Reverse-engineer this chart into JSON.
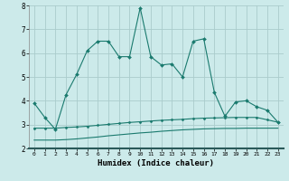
{
  "xlabel": "Humidex (Indice chaleur)",
  "background_color": "#cceaea",
  "grid_color": "#aacccc",
  "line_color": "#1a7a6e",
  "xlim": [
    -0.5,
    23.5
  ],
  "ylim": [
    2,
    8
  ],
  "xticks": [
    0,
    1,
    2,
    3,
    4,
    5,
    6,
    7,
    8,
    9,
    10,
    11,
    12,
    13,
    14,
    15,
    16,
    17,
    18,
    19,
    20,
    21,
    22,
    23
  ],
  "yticks": [
    2,
    3,
    4,
    5,
    6,
    7,
    8
  ],
  "series1_x": [
    0,
    1,
    2,
    3,
    4,
    5,
    6,
    7,
    8,
    9,
    10,
    11,
    12,
    13,
    14,
    15,
    16,
    17,
    18,
    19,
    20,
    21,
    22,
    23
  ],
  "series1_y": [
    3.9,
    3.3,
    2.8,
    4.25,
    5.1,
    6.1,
    6.5,
    6.5,
    5.85,
    5.85,
    7.9,
    5.85,
    5.5,
    5.55,
    5.0,
    6.5,
    6.6,
    4.35,
    3.35,
    3.95,
    4.0,
    3.75,
    3.6,
    3.1
  ],
  "series2_x": [
    0,
    1,
    2,
    3,
    4,
    5,
    6,
    7,
    8,
    9,
    10,
    11,
    12,
    13,
    14,
    15,
    16,
    17,
    18,
    19,
    20,
    21,
    22,
    23
  ],
  "series2_y": [
    2.85,
    2.85,
    2.85,
    2.88,
    2.9,
    2.93,
    2.97,
    3.01,
    3.05,
    3.09,
    3.12,
    3.15,
    3.18,
    3.2,
    3.22,
    3.25,
    3.27,
    3.28,
    3.29,
    3.3,
    3.3,
    3.3,
    3.2,
    3.1
  ],
  "series3_x": [
    0,
    1,
    2,
    3,
    4,
    5,
    6,
    7,
    8,
    9,
    10,
    11,
    12,
    13,
    14,
    15,
    16,
    17,
    18,
    19,
    20,
    21,
    22,
    23
  ],
  "series3_y": [
    2.35,
    2.35,
    2.35,
    2.37,
    2.4,
    2.44,
    2.48,
    2.53,
    2.57,
    2.61,
    2.65,
    2.68,
    2.72,
    2.75,
    2.78,
    2.8,
    2.82,
    2.83,
    2.84,
    2.84,
    2.85,
    2.85,
    2.85,
    2.85
  ]
}
